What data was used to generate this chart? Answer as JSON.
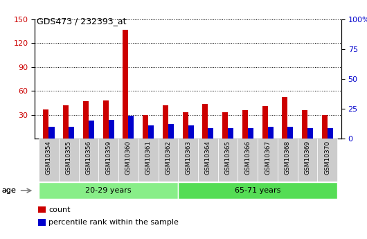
{
  "title": "GDS473 / 232393_at",
  "samples": [
    "GSM10354",
    "GSM10355",
    "GSM10356",
    "GSM10359",
    "GSM10360",
    "GSM10361",
    "GSM10362",
    "GSM10363",
    "GSM10364",
    "GSM10365",
    "GSM10366",
    "GSM10367",
    "GSM10368",
    "GSM10369",
    "GSM10370"
  ],
  "count_values": [
    37,
    42,
    47,
    48,
    137,
    30,
    42,
    33,
    44,
    33,
    36,
    41,
    52,
    36,
    30
  ],
  "percentile_values": [
    10,
    10,
    15,
    16,
    19,
    11,
    12,
    11,
    9,
    9,
    9,
    10,
    10,
    9,
    9
  ],
  "groups": [
    {
      "label": "20-29 years",
      "start": 0,
      "end": 7,
      "color": "#88EE88"
    },
    {
      "label": "65-71 years",
      "start": 7,
      "end": 15,
      "color": "#55DD55"
    }
  ],
  "age_label": "age",
  "ylim_left": [
    0,
    150
  ],
  "ylim_right": [
    0,
    100
  ],
  "yticks_left": [
    30,
    60,
    90,
    120,
    150
  ],
  "yticks_right": [
    0,
    25,
    50,
    75,
    100
  ],
  "ytick_labels_right": [
    "0",
    "25",
    "50",
    "75",
    "100%"
  ],
  "bar_width": 0.28,
  "count_color": "#CC0000",
  "percentile_color": "#0000CC",
  "bg_color": "#FFFFFF",
  "tick_bg": "#CCCCCC",
  "legend_count": "count",
  "legend_percentile": "percentile rank within the sample",
  "figsize": [
    5.3,
    3.45
  ],
  "dpi": 100
}
